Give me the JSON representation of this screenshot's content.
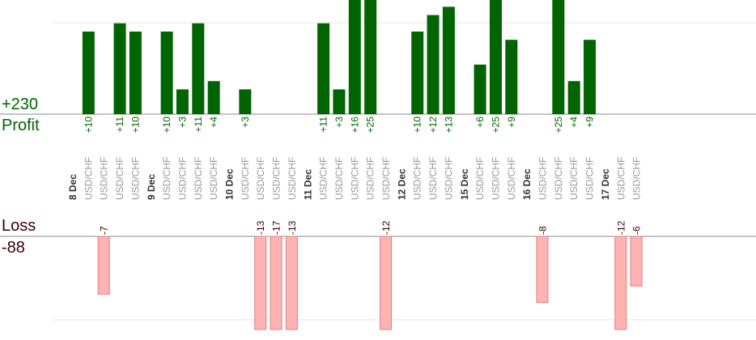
{
  "summary": {
    "profit_total": "+230",
    "profit_label": "Profit",
    "loss_label": "Loss",
    "loss_total": "-88"
  },
  "colors": {
    "profit_bar": "#006400",
    "profit_text": "#006400",
    "loss_bar": "#ffb3b3",
    "loss_bar_edge": "#e08080",
    "loss_text": "#3a0000",
    "axis": "#888888",
    "grid": "#e6e6e6",
    "pair_text": "#999999",
    "date_text": "#333333"
  },
  "chart_data": {
    "type": "bar",
    "profit_ylim": [
      0,
      12
    ],
    "loss_ylim": [
      0,
      12
    ],
    "columns": [
      {
        "kind": "date",
        "label": "8 Dec"
      },
      {
        "kind": "trade",
        "label": "USD/CHF",
        "value": 10
      },
      {
        "kind": "trade",
        "label": "USD/CHF",
        "value": -7
      },
      {
        "kind": "trade",
        "label": "USD/CHF",
        "value": 11
      },
      {
        "kind": "trade",
        "label": "USD/CHF",
        "value": 10
      },
      {
        "kind": "date",
        "label": "9 Dec"
      },
      {
        "kind": "trade",
        "label": "USD/CHF",
        "value": 10
      },
      {
        "kind": "trade",
        "label": "USD/CHF",
        "value": 3
      },
      {
        "kind": "trade",
        "label": "USD/CHF",
        "value": 11
      },
      {
        "kind": "trade",
        "label": "USD/CHF",
        "value": 4
      },
      {
        "kind": "date",
        "label": "10 Dec"
      },
      {
        "kind": "trade",
        "label": "USD/CHF",
        "value": 3
      },
      {
        "kind": "trade",
        "label": "USD/CHF",
        "value": -13
      },
      {
        "kind": "trade",
        "label": "USD/CHF",
        "value": -17
      },
      {
        "kind": "trade",
        "label": "USD/CHF",
        "value": -13
      },
      {
        "kind": "date",
        "label": "11 Dec"
      },
      {
        "kind": "trade",
        "label": "USD/CHF",
        "value": 11
      },
      {
        "kind": "trade",
        "label": "USD/CHF",
        "value": 3
      },
      {
        "kind": "trade",
        "label": "USD/CHF",
        "value": 16
      },
      {
        "kind": "trade",
        "label": "USD/CHF",
        "value": 25
      },
      {
        "kind": "trade",
        "label": "USD/CHF",
        "value": -12
      },
      {
        "kind": "date",
        "label": "12 Dec"
      },
      {
        "kind": "trade",
        "label": "USD/CHF",
        "value": 10
      },
      {
        "kind": "trade",
        "label": "USD/CHF",
        "value": 12
      },
      {
        "kind": "trade",
        "label": "USD/CHF",
        "value": 13
      },
      {
        "kind": "date",
        "label": "15 Dec"
      },
      {
        "kind": "trade",
        "label": "USD/CHF",
        "value": 6
      },
      {
        "kind": "trade",
        "label": "USD/CHF",
        "value": 25
      },
      {
        "kind": "trade",
        "label": "USD/CHF",
        "value": 9
      },
      {
        "kind": "date",
        "label": "16 Dec"
      },
      {
        "kind": "trade",
        "label": "USD/CHF",
        "value": -8
      },
      {
        "kind": "trade",
        "label": "USD/CHF",
        "value": 25
      },
      {
        "kind": "trade",
        "label": "USD/CHF",
        "value": 4
      },
      {
        "kind": "trade",
        "label": "USD/CHF",
        "value": 9
      },
      {
        "kind": "date",
        "label": "17 Dec"
      },
      {
        "kind": "trade",
        "label": "USD/CHF",
        "value": -12
      },
      {
        "kind": "trade",
        "label": "USD/CHF",
        "value": -6
      }
    ]
  }
}
